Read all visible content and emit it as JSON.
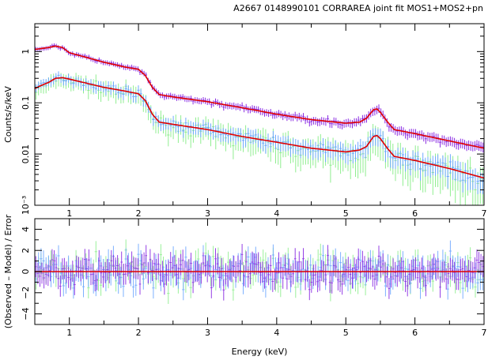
{
  "title": "A2667 0148990101 CORRAREA joint fit MOS1+MOS2+pn",
  "colors": {
    "pn": "#8a2be2",
    "mos1": "#6fa8ff",
    "mos2": "#90ee90",
    "model": "#e00000"
  },
  "chart_data": [
    {
      "type": "line",
      "panel": "spectrum",
      "ylabel": "Counts/s/keV",
      "xlabel": "",
      "xlim": [
        0.5,
        7
      ],
      "ylim": [
        0.001,
        3.5
      ],
      "yscale": "log",
      "xticks": [
        "1",
        "2",
        "3",
        "4",
        "5",
        "6",
        "7"
      ],
      "yticks": [
        "1",
        "0.1",
        "0.01",
        "10⁻³"
      ],
      "series": [
        {
          "x": [
            0.5,
            0.6,
            0.7,
            0.8,
            0.9,
            1.0,
            1.2,
            1.5,
            1.8,
            2.0,
            2.1,
            2.2,
            2.3,
            2.5,
            3.0,
            3.5,
            4.0,
            4.5,
            5.0,
            5.2,
            5.3,
            5.4,
            5.45,
            5.5,
            5.6,
            5.7,
            6.0,
            6.5,
            7.0
          ],
          "y": [
            1.1,
            1.15,
            1.2,
            1.28,
            1.2,
            0.95,
            0.8,
            0.62,
            0.5,
            0.45,
            0.34,
            0.2,
            0.145,
            0.13,
            0.105,
            0.08,
            0.06,
            0.047,
            0.04,
            0.042,
            0.05,
            0.073,
            0.076,
            0.065,
            0.043,
            0.03,
            0.025,
            0.018,
            0.013
          ]
        },
        {
          "x": [
            0.5,
            0.6,
            0.7,
            0.8,
            0.9,
            1.0,
            1.2,
            1.5,
            1.8,
            2.0,
            2.1,
            2.2,
            2.3,
            2.5,
            3.0,
            3.5,
            4.0,
            4.5,
            5.0,
            5.2,
            5.3,
            5.4,
            5.45,
            5.5,
            5.6,
            5.7,
            6.0,
            6.5,
            7.0
          ],
          "y": [
            0.19,
            0.22,
            0.25,
            0.3,
            0.31,
            0.29,
            0.25,
            0.2,
            0.17,
            0.15,
            0.11,
            0.06,
            0.042,
            0.038,
            0.03,
            0.022,
            0.017,
            0.013,
            0.011,
            0.012,
            0.014,
            0.022,
            0.023,
            0.02,
            0.013,
            0.009,
            0.0075,
            0.0052,
            0.0034
          ]
        },
        {
          "x": [
            0.5,
            0.6,
            0.7,
            0.8,
            0.9,
            1.0,
            1.2,
            1.5,
            1.8,
            2.0,
            2.1,
            2.2,
            2.3,
            2.5,
            3.0,
            3.5,
            4.0,
            4.5,
            5.0,
            5.2,
            5.3,
            5.4,
            5.45,
            5.5,
            5.6,
            5.7,
            6.0,
            6.5,
            7.0
          ],
          "y": [
            0.17,
            0.2,
            0.23,
            0.28,
            0.3,
            0.27,
            0.24,
            0.19,
            0.16,
            0.14,
            0.1,
            0.055,
            0.04,
            0.036,
            0.028,
            0.021,
            0.016,
            0.012,
            0.01,
            0.011,
            0.013,
            0.02,
            0.021,
            0.018,
            0.012,
            0.0085,
            0.007,
            0.005,
            0.0032
          ]
        }
      ]
    },
    {
      "type": "scatter",
      "panel": "residuals",
      "ylabel": "(Observed – Model) / Error",
      "xlabel": "Energy (keV)",
      "xlim": [
        0.5,
        7
      ],
      "ylim": [
        -5,
        5
      ],
      "xticks": [
        "1",
        "2",
        "3",
        "4",
        "5",
        "6",
        "7"
      ],
      "yticks": [
        "4",
        "2",
        "0",
        "−2",
        "−4"
      ],
      "zero_line": 0
    }
  ]
}
